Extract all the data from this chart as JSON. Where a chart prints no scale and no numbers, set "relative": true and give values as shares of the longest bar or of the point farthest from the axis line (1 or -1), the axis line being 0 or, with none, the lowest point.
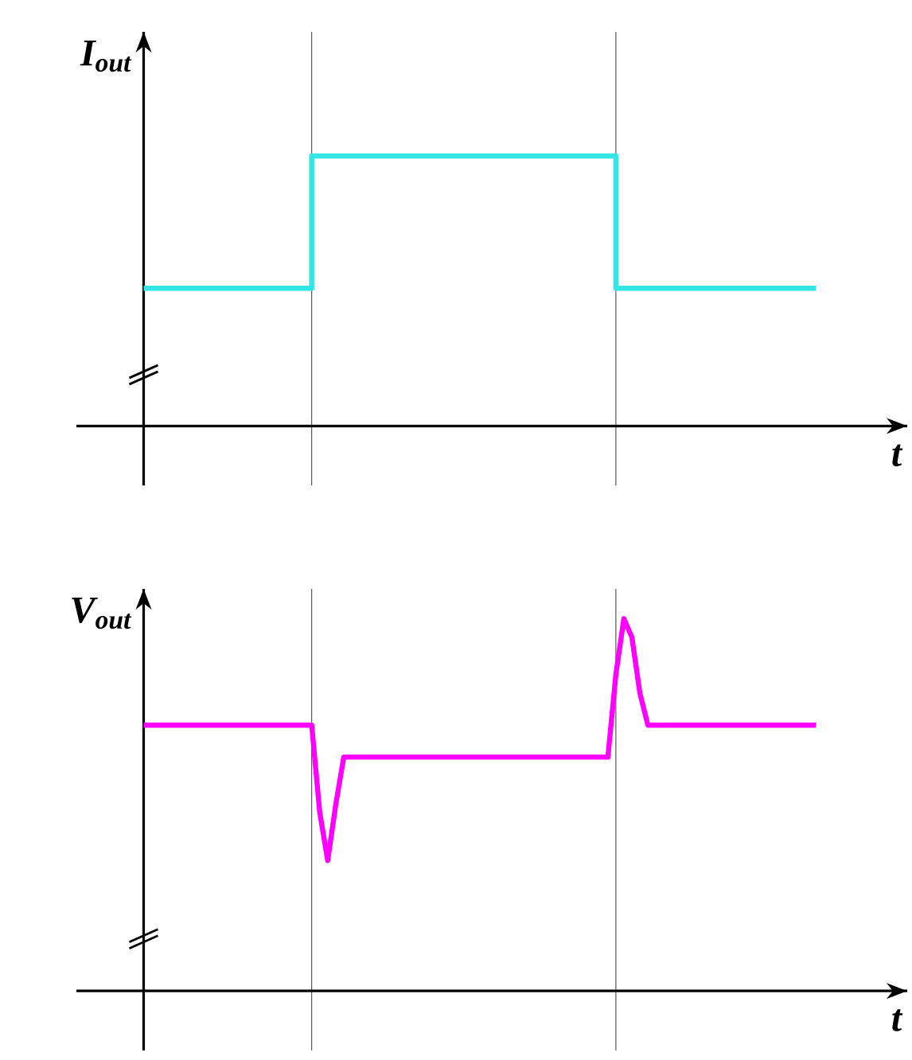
{
  "chart_data": [
    {
      "type": "step",
      "xlabel": "t",
      "ylabel": "I$_{out}$",
      "relative": true,
      "color": "#33e6e6",
      "categories": [
        null,
        null,
        null,
        null,
        null,
        null,
        null,
        null,
        null,
        null,
        null,
        null,
        null,
        null,
        null,
        null,
        null,
        null,
        null,
        null,
        null,
        null,
        null,
        null,
        null,
        null,
        null,
        null,
        null,
        null,
        null,
        null,
        null,
        null,
        null,
        null,
        null,
        null,
        null,
        null,
        null,
        null,
        null,
        null,
        null,
        null,
        null,
        null,
        null,
        null,
        null,
        null,
        null,
        null,
        null,
        null,
        null,
        null,
        null,
        null,
        null,
        null,
        null,
        null,
        null,
        null,
        null,
        null,
        null,
        null,
        null,
        null,
        null,
        null,
        null,
        null,
        null,
        null,
        null,
        null,
        null,
        null,
        null,
        null,
        null
      ],
      "values": [
        0.51,
        0.51,
        0.51,
        0.51,
        0.51,
        0.51,
        0.51,
        0.51,
        0.51,
        0.51,
        0.51,
        0.51,
        0.51,
        0.51,
        0.51,
        0.51,
        0.51,
        0.51,
        0.51,
        0.51,
        0.51,
        1,
        1,
        1,
        1,
        1,
        1,
        1,
        1,
        1,
        1,
        1,
        1,
        1,
        1,
        1,
        1,
        1,
        1,
        1,
        1,
        1,
        1,
        1,
        1,
        1,
        1,
        1,
        1,
        1,
        1,
        1,
        1,
        1,
        1,
        1,
        1,
        1,
        1,
        0.51,
        0.51,
        0.51,
        0.51,
        0.51,
        0.51,
        0.51,
        0.51,
        0.51,
        0.51,
        0.51,
        0.51,
        0.51,
        0.51,
        0.51,
        0.51,
        0.51,
        0.51,
        0.51,
        0.51,
        0.51,
        0.51,
        0.51,
        0.51,
        0.51,
        0.51
      ]
    },
    {
      "type": "line",
      "xlabel": "t",
      "ylabel": "V$_{out}$",
      "relative": true,
      "color": "#ff00ff",
      "categories": [
        null,
        null,
        null,
        null,
        null,
        null,
        null,
        null,
        null,
        null,
        null,
        null,
        null,
        null,
        null,
        null,
        null,
        null,
        null,
        null,
        null,
        null,
        null,
        null,
        null,
        null,
        null,
        null,
        null,
        null,
        null,
        null,
        null,
        null,
        null,
        null,
        null,
        null,
        null,
        null,
        null,
        null,
        null,
        null,
        null,
        null,
        null,
        null,
        null,
        null,
        null,
        null,
        null,
        null,
        null,
        null,
        null,
        null,
        null,
        null,
        null,
        null,
        null,
        null,
        null,
        null,
        null,
        null,
        null,
        null,
        null,
        null,
        null,
        null,
        null,
        null,
        null,
        null,
        null,
        null,
        null,
        null,
        null,
        null,
        null
      ],
      "values": [
        0.714,
        0.714,
        0.714,
        0.714,
        0.714,
        0.714,
        0.714,
        0.714,
        0.714,
        0.714,
        0.714,
        0.714,
        0.714,
        0.714,
        0.714,
        0.714,
        0.714,
        0.714,
        0.714,
        0.714,
        0.714,
        0.714,
        0.48,
        0.35,
        0.5,
        0.628,
        0.628,
        0.628,
        0.628,
        0.628,
        0.628,
        0.628,
        0.628,
        0.628,
        0.628,
        0.628,
        0.628,
        0.628,
        0.628,
        0.628,
        0.628,
        0.628,
        0.628,
        0.628,
        0.628,
        0.628,
        0.628,
        0.628,
        0.628,
        0.628,
        0.628,
        0.628,
        0.628,
        0.628,
        0.628,
        0.628,
        0.628,
        0.628,
        0.628,
        0.85,
        1,
        0.95,
        0.8,
        0.714,
        0.714,
        0.714,
        0.714,
        0.714,
        0.714,
        0.714,
        0.714,
        0.714,
        0.714,
        0.714,
        0.714,
        0.714,
        0.714,
        0.714,
        0.714,
        0.714,
        0.714,
        0.714,
        0.714,
        0.714,
        0.714
      ]
    }
  ]
}
